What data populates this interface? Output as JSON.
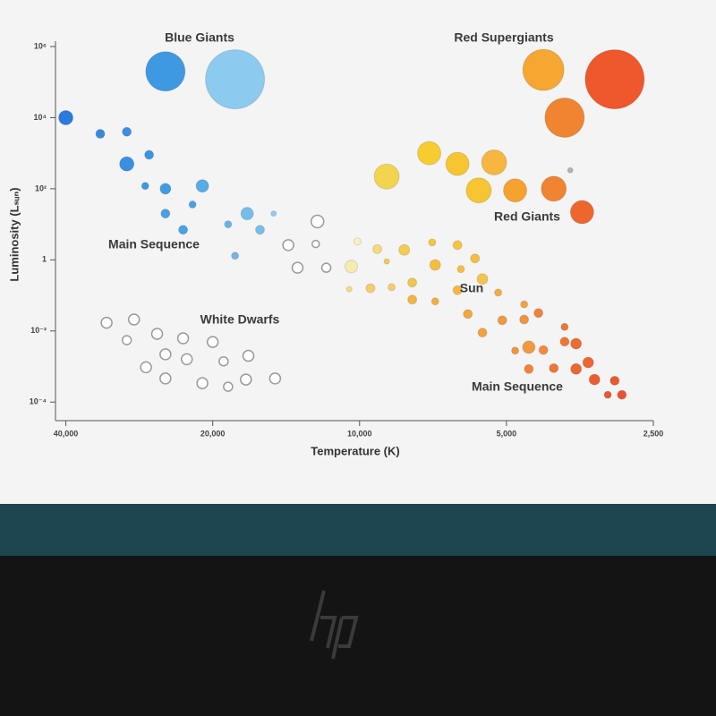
{
  "chart_data": {
    "type": "scatter",
    "x_label": "Temperature (K)",
    "y_label": "Luminosity (Lₛᵤₙ)",
    "annotations": [
      "Blue Giants",
      "Red Supergiants",
      "Red Giants",
      "Main Sequence",
      "White Dwarfs",
      "Sun",
      "Main Sequence"
    ],
    "x_log": true,
    "y_log": true,
    "xlim": [
      42000,
      2500
    ],
    "ylim": [
      3e-05,
      1000000
    ],
    "xticks": [
      {
        "value": 40000,
        "label": "40,000"
      },
      {
        "value": 20000,
        "label": "20,000"
      },
      {
        "value": 10000,
        "label": "10,000"
      },
      {
        "value": 5000,
        "label": "5,000"
      },
      {
        "value": 2500,
        "label": "2,500"
      }
    ],
    "yticks": [
      {
        "value": 1000000,
        "label": "10⁶"
      },
      {
        "value": 10000,
        "label": "10⁴"
      },
      {
        "value": 100,
        "label": "10²"
      },
      1,
      {
        "value": 0.01,
        "label": "10⁻²"
      },
      {
        "value": 0.0001,
        "label": "10⁻⁴"
      }
    ],
    "x": [
      25000,
      18000,
      4200,
      3000,
      3800,
      40000,
      34000,
      30000,
      30000,
      27000,
      27500,
      25000,
      21000,
      22000,
      25000,
      23000,
      18600,
      17000,
      16000,
      15000,
      18000,
      8800,
      7200,
      6300,
      5300,
      5700,
      4800,
      4000,
      3500,
      3700,
      12200,
      14000,
      12300,
      10100,
      13400,
      11700,
      10400,
      9200,
      8100,
      8800,
      7100,
      6300,
      7000,
      5800,
      6200,
      5600,
      6300,
      7800,
      10500,
      9500,
      8600,
      7800,
      7000,
      6000,
      5200,
      4600,
      5600,
      5100,
      4600,
      4300,
      3800,
      3800,
      3600,
      4500,
      4800,
      4200,
      3400,
      3600,
      4000,
      4500,
      3300,
      3000,
      3100,
      2900,
      33000,
      29000,
      30000,
      26000,
      23000,
      20000,
      25000,
      22600,
      27400,
      19000,
      16900,
      25000,
      21000,
      18600,
      17100,
      14900
    ],
    "values": [
      200000,
      120000,
      220000,
      120000,
      10000,
      10000,
      3500,
      4000,
      500,
      900,
      120,
      100,
      120,
      36,
      20,
      7,
      10,
      20,
      7,
      20,
      1.3,
      220,
      1000,
      500,
      550,
      90,
      90,
      100,
      22,
      330,
      12,
      2.6,
      2.8,
      3.3,
      0.6,
      0.6,
      0.65,
      2,
      1.9,
      0.9,
      3.1,
      2.6,
      0.72,
      1.1,
      0.55,
      0.29,
      0.14,
      0.23,
      0.15,
      0.16,
      0.17,
      0.076,
      0.068,
      0.03,
      0.12,
      0.056,
      0.009,
      0.02,
      0.021,
      0.032,
      0.013,
      0.005,
      0.0044,
      0.0035,
      0.0028,
      0.0029,
      0.0013,
      0.00085,
      0.0009,
      0.00085,
      0.00043,
      0.0004,
      0.00016,
      0.00016,
      0.017,
      0.021,
      0.0055,
      0.0083,
      0.0062,
      0.0049,
      0.0022,
      0.0016,
      0.00095,
      0.0014,
      0.002,
      0.00046,
      0.00034,
      0.00027,
      0.00043,
      0.00046
    ],
    "sizes": [
      22,
      33,
      23,
      33,
      22,
      8,
      5,
      5,
      8,
      5,
      4,
      6,
      7,
      4,
      5,
      5,
      4,
      7,
      5,
      3,
      4,
      14,
      13,
      13,
      14,
      14,
      13,
      14,
      13,
      3,
      7,
      6,
      4,
      4,
      6,
      5,
      7,
      5,
      6,
      3,
      4,
      5,
      6,
      5,
      4,
      6,
      5,
      5,
      3,
      5,
      4,
      5,
      4,
      5,
      4,
      4,
      5,
      5,
      5,
      5,
      4,
      5,
      6,
      7,
      4,
      5,
      6,
      6,
      5,
      5,
      6,
      5,
      4,
      5,
      6,
      6,
      5,
      6,
      6,
      6,
      6,
      6,
      6,
      5,
      6,
      6,
      6,
      5,
      6,
      6
    ],
    "colors": [
      "#2f8fe0",
      "#82c6ee",
      "#f5a020",
      "#ee4a1a",
      "#f07a20",
      "#1a6fd8",
      "#2a7fd8",
      "#2a85dd",
      "#2a85dd",
      "#2a8be0",
      "#2f90e0",
      "#3092e0",
      "#4aa5e5",
      "#3a9ae2",
      "#3a98e2",
      "#3a9ae2",
      "#5aaee6",
      "#6ab8e8",
      "#6ab8e8",
      "#8ac6ec",
      "#6aaee6",
      "#f2d040",
      "#f5c820",
      "#f5c020",
      "#f5b030",
      "#f5c020",
      "#f59a20",
      "#f07a20",
      "#ec5a1a",
      "#aaaaaa",
      "#ffffff",
      "#ffffff",
      "#ffffff",
      "#f8eec0",
      "#ffffff",
      "#ffffff",
      "#f6eaa8",
      "#f5d870",
      "#f5c640",
      "#f5c640",
      "#f5c030",
      "#f5c030",
      "#f2b830",
      "#f5b830",
      "#f5b830",
      "#f2c040",
      "#f5b030",
      "#f2c040",
      "#f5d870",
      "#f5c860",
      "#f5c860",
      "#f0b030",
      "#f0a830",
      "#f0a030",
      "#f0a830",
      "#f09a30",
      "#f09a30",
      "#f09030",
      "#f08a30",
      "#ee7a28",
      "#ee6a24",
      "#ee6a24",
      "#ec6020",
      "#f09030",
      "#f08a30",
      "#f08030",
      "#ec5a20",
      "#ec5a20",
      "#ee6a24",
      "#ef7a28",
      "#ea5020",
      "#ea4a1e",
      "#e84a1e",
      "#e8441c",
      "#ffffff",
      "#ffffff",
      "#ffffff",
      "#ffffff",
      "#ffffff",
      "#ffffff",
      "#ffffff",
      "#ffffff",
      "#ffffff",
      "#ffffff",
      "#ffffff",
      "#ffffff",
      "#ffffff",
      "#ffffff",
      "#ffffff",
      "#ffffff"
    ]
  }
}
